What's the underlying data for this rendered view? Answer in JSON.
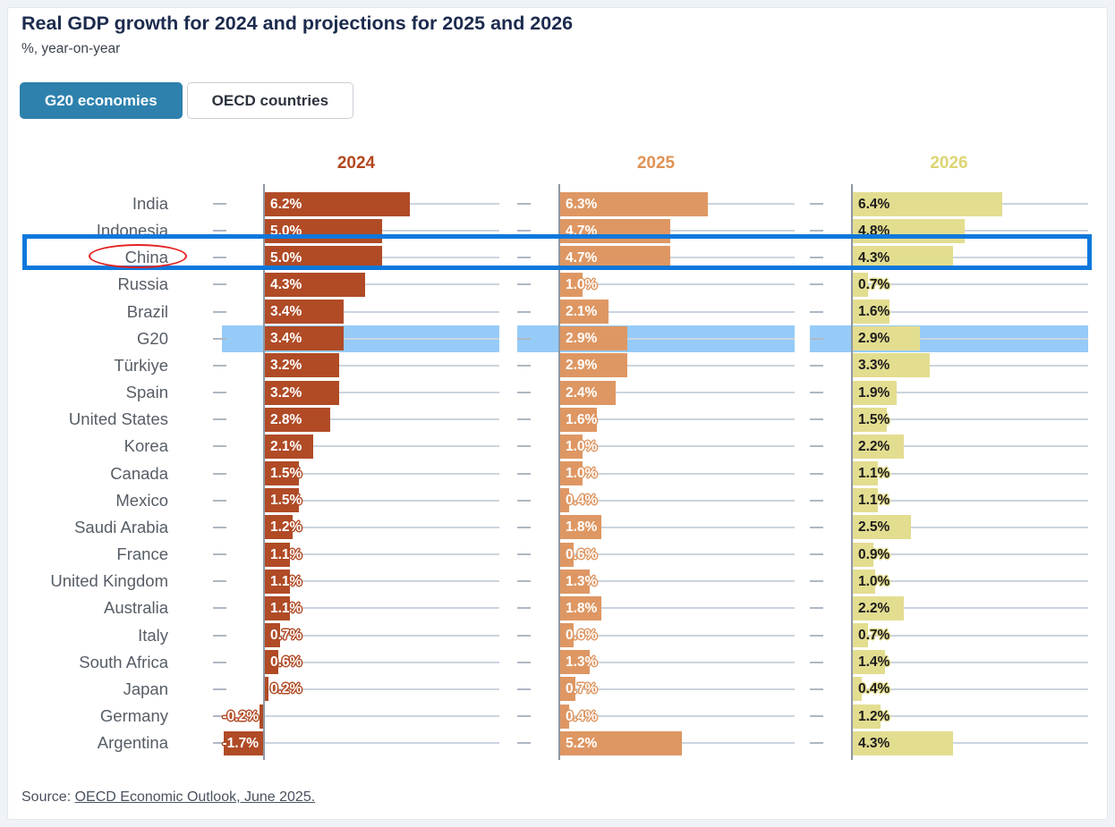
{
  "title": "Real GDP growth for 2024 and projections for 2025 and 2026",
  "subtitle": "%, year-on-year",
  "tabs": [
    {
      "label": "G20 economies",
      "active": true,
      "bg": "#2e81ad",
      "text_color": "#ffffff"
    },
    {
      "label": "OECD countries",
      "active": false
    }
  ],
  "source": {
    "prefix": "Source: ",
    "link_text": "OECD Economic Outlook, June 2025."
  },
  "chart_data": {
    "type": "bar",
    "orientation": "horizontal",
    "title": "Real GDP growth for 2024 and projections for 2025 and 2026",
    "subtitle": "%, year-on-year",
    "unit": "percent, year-on-year",
    "xlim": [
      -2,
      7
    ],
    "gridlines": true,
    "legend_position": "column-headers-top",
    "categories": [
      "India",
      "Indonesia",
      "China",
      "Russia",
      "Brazil",
      "G20",
      "Türkiye",
      "Spain",
      "United States",
      "Korea",
      "Canada",
      "Mexico",
      "Saudi Arabia",
      "France",
      "United Kingdom",
      "Australia",
      "Italy",
      "South Africa",
      "Japan",
      "Germany",
      "Argentina"
    ],
    "series": [
      {
        "name": "2024",
        "bar_color": "#b04b26",
        "header_color": "#b2481f",
        "value_text_color": "#ffffff",
        "values": [
          6.2,
          5.0,
          5.0,
          4.3,
          3.4,
          3.4,
          3.2,
          3.2,
          2.8,
          2.1,
          1.5,
          1.5,
          1.2,
          1.1,
          1.1,
          1.1,
          0.7,
          0.6,
          0.2,
          -0.2,
          -1.7
        ]
      },
      {
        "name": "2025",
        "bar_color": "#de9763",
        "header_color": "#df9354",
        "value_text_color": "#ffffff",
        "values": [
          6.3,
          4.7,
          4.7,
          1.0,
          2.1,
          2.9,
          2.9,
          2.4,
          1.6,
          1.0,
          1.0,
          0.4,
          1.8,
          0.6,
          1.3,
          1.8,
          0.6,
          1.3,
          0.7,
          0.4,
          5.2
        ]
      },
      {
        "name": "2026",
        "bar_color": "#e3dd90",
        "header_color": "#ddd572",
        "value_text_color": "#1c1c1c",
        "values": [
          6.4,
          4.8,
          4.3,
          0.7,
          1.6,
          2.9,
          3.3,
          1.9,
          1.5,
          2.2,
          1.1,
          1.1,
          2.5,
          0.9,
          1.0,
          2.2,
          0.7,
          1.4,
          0.4,
          1.2,
          4.3
        ]
      }
    ],
    "highlight_band": {
      "row": "G20",
      "color": "#96cbf8"
    },
    "annotation_box": {
      "row": "China",
      "border_color": "#0d78dc"
    },
    "annotation_ellipse": {
      "label": "China",
      "border_color": "#e32221"
    }
  }
}
